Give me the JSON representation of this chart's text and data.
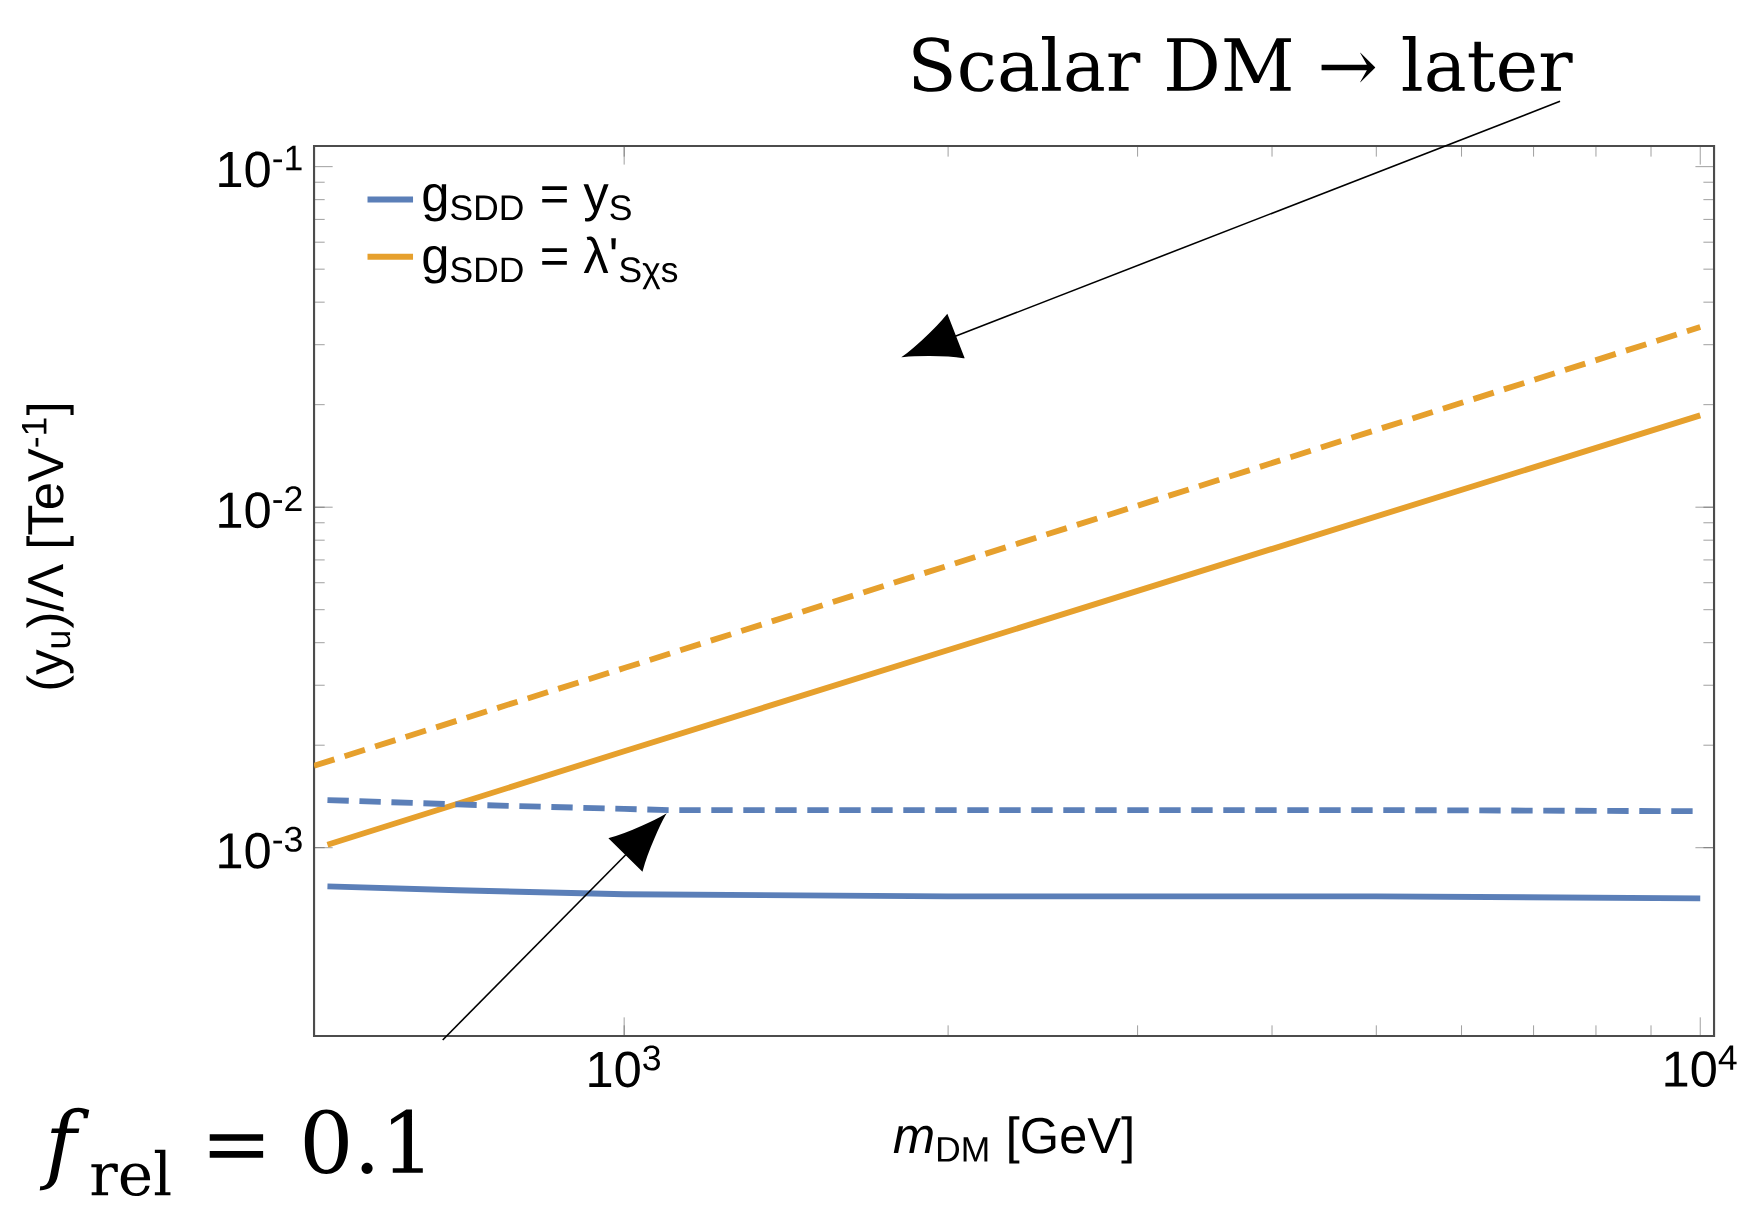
{
  "chart_data": {
    "type": "line",
    "xlabel": "*m*$_{DM}$ [GeV]",
    "ylabel": "(y$_{u}$)/Λ [TeV$^{-1}$]",
    "log": "xy",
    "xlim": [
      515,
      10300
    ],
    "ylim": [
      0.00028,
      0.115
    ],
    "xticks": [
      {
        "value": 1000,
        "label": "10$^{3}$"
      },
      {
        "value": 10000,
        "label": "10$^{4}$"
      }
    ],
    "yticks": [
      {
        "value": 0.001,
        "label": "10$^{-3}$"
      },
      {
        "value": 0.01,
        "label": "10$^{-2}$"
      },
      {
        "value": 0.1,
        "label": "10$^{-1}$"
      }
    ],
    "legend": "top left",
    "grid": false,
    "series": [
      {
        "name": "g$_{SDD}$ = y$_{S}$",
        "color": "#5b7fb8",
        "line_style": "solid",
        "x": [
          530,
          700,
          1000,
          2000,
          5000,
          10000
        ],
        "values": [
          0.00077,
          0.00075,
          0.00073,
          0.00072,
          0.00072,
          0.00071
        ]
      },
      {
        "name": "g$_{SDD}$ = λ'$_{Sχs}$",
        "color": "#e6a02d",
        "line_style": "solid",
        "x": [
          530,
          1000,
          3000,
          10000
        ],
        "values": [
          0.00102,
          0.00192,
          0.00568,
          0.0186
        ]
      },
      {
        "color": "#5b7fb8",
        "line_style": "dashed",
        "x": [
          530,
          700,
          1000,
          1100,
          2000,
          5000,
          10000
        ],
        "values": [
          0.00138,
          0.00134,
          0.0013,
          0.00129,
          0.00129,
          0.00129,
          0.00128
        ]
      },
      {
        "color": "#e6a02d",
        "line_style": "dashed",
        "x": [
          515,
          1000,
          3000,
          10000
        ],
        "values": [
          0.00174,
          0.00337,
          0.0101,
          0.0338
        ]
      }
    ],
    "annotations": [
      "Scalar DM → later",
      "*f*$_{rel}$ = 0.1"
    ]
  }
}
